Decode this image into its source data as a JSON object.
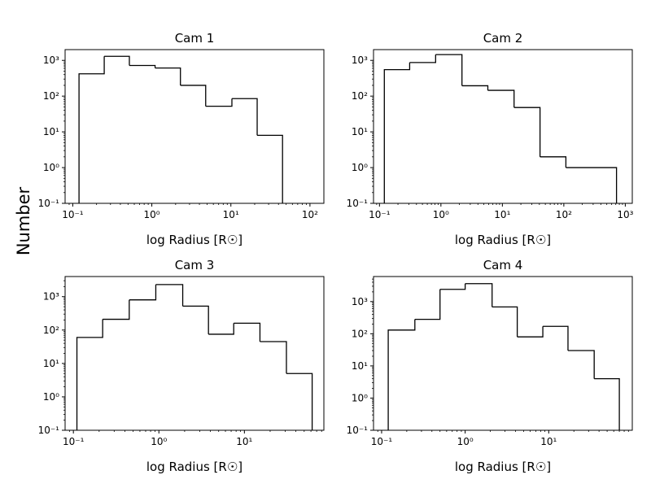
{
  "figure": {
    "ylabel": "Number"
  },
  "chart_data": [
    {
      "type": "histogram",
      "title": "Cam 1",
      "xlabel": "log Radius [R☉]",
      "xscale": "log",
      "yscale": "log",
      "xlim": [
        0.08,
        150
      ],
      "ylim": [
        0.1,
        2000
      ],
      "xticks": [
        0.1,
        1,
        10,
        100
      ],
      "xtick_labels": [
        "10⁻¹",
        "10⁰",
        "10¹",
        "10²"
      ],
      "yticks": [
        0.1,
        1,
        10,
        100,
        1000
      ],
      "ytick_labels": [
        "10⁻¹",
        "10⁰",
        "10¹",
        "10²",
        "10³"
      ],
      "bin_edges": [
        0.12,
        0.25,
        0.52,
        1.1,
        2.3,
        4.8,
        10.3,
        21.5,
        45
      ],
      "counts": [
        420,
        1300,
        720,
        610,
        200,
        52,
        85,
        8
      ]
    },
    {
      "type": "histogram",
      "title": "Cam 2",
      "xlabel": "log Radius [R☉]",
      "xscale": "log",
      "yscale": "log",
      "xlim": [
        0.08,
        1300
      ],
      "ylim": [
        0.1,
        2000
      ],
      "xticks": [
        0.1,
        1,
        10,
        100,
        1000
      ],
      "xtick_labels": [
        "10⁻¹",
        "10⁰",
        "10¹",
        "10²",
        "10³"
      ],
      "yticks": [
        0.1,
        1,
        10,
        100,
        1000
      ],
      "ytick_labels": [
        "10⁻¹",
        "10⁰",
        "10¹",
        "10²",
        "10³"
      ],
      "bin_edges": [
        0.12,
        0.31,
        0.82,
        2.2,
        5.8,
        15.5,
        41,
        108,
        720
      ],
      "counts": [
        550,
        870,
        1450,
        195,
        145,
        48,
        2,
        1
      ]
    },
    {
      "type": "histogram",
      "title": "Cam 3",
      "xlabel": "log Radius [R☉]",
      "xscale": "log",
      "yscale": "log",
      "xlim": [
        0.08,
        85
      ],
      "ylim": [
        0.1,
        4000
      ],
      "xticks": [
        0.1,
        1,
        10
      ],
      "xtick_labels": [
        "10⁻¹",
        "10⁰",
        "10¹"
      ],
      "yticks": [
        0.1,
        1,
        10,
        100,
        1000
      ],
      "ytick_labels": [
        "10⁻¹",
        "10⁰",
        "10¹",
        "10²",
        "10³"
      ],
      "bin_edges": [
        0.11,
        0.22,
        0.45,
        0.92,
        1.9,
        3.8,
        7.5,
        15.2,
        31,
        62
      ],
      "counts": [
        60,
        210,
        800,
        2300,
        520,
        75,
        160,
        45,
        5
      ]
    },
    {
      "type": "histogram",
      "title": "Cam 4",
      "xlabel": "log Radius [R☉]",
      "xscale": "log",
      "yscale": "log",
      "xlim": [
        0.08,
        100
      ],
      "ylim": [
        0.1,
        6000
      ],
      "xticks": [
        0.1,
        1,
        10
      ],
      "xtick_labels": [
        "10⁻¹",
        "10⁰",
        "10¹"
      ],
      "yticks": [
        0.1,
        1,
        10,
        100,
        1000
      ],
      "ytick_labels": [
        "10⁻¹",
        "10⁰",
        "10¹",
        "10²",
        "10³"
      ],
      "bin_edges": [
        0.12,
        0.25,
        0.5,
        1.0,
        2.1,
        4.2,
        8.5,
        17,
        35,
        70
      ],
      "counts": [
        130,
        280,
        2400,
        3600,
        680,
        80,
        170,
        30,
        4
      ]
    }
  ]
}
